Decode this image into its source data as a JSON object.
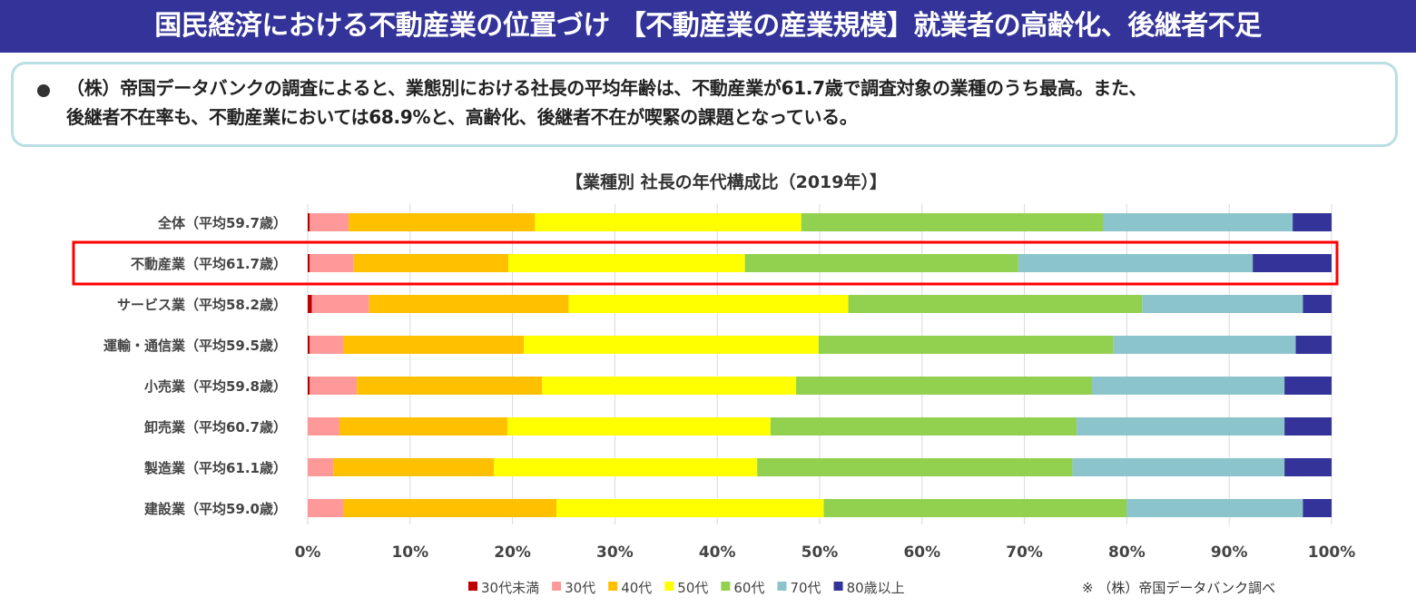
{
  "header": {
    "title": "国民経済における不動産業の位置づけ 【不動産業の産業規模】就業者の高齢化、後継者不足"
  },
  "callout": {
    "line1": "（株）帝国データバンクの調査によると、業態別における社長の平均年齢は、不動産業が61.7歳で調査対象の業種のうち最高。また、",
    "line2": "後継者不在率も、不動産業においては68.9%と、高齢化、後継者不在が喫緊の課題となっている。"
  },
  "source_note": "※ （株）帝国データバンク調べ",
  "chart_data": {
    "type": "bar",
    "orientation": "horizontal",
    "stacked": "100%",
    "title": "【業種別 社長の年代構成比（2019年）】",
    "categories": [
      "全体（平均59.7歳）",
      "不動産業（平均61.7歳）",
      "サービス業（平均58.2歳）",
      "運輸・通信業（平均59.5歳）",
      "小売業（平均59.8歳）",
      "卸売業（平均60.7歳）",
      "製造業（平均61.1歳）",
      "建設業（平均59.0歳）"
    ],
    "highlighted_category": "不動産業（平均61.7歳）",
    "highlight_color": "#ff0000",
    "xlim": [
      0,
      100
    ],
    "x_ticks": [
      "0%",
      "10%",
      "20%",
      "30%",
      "40%",
      "50%",
      "60%",
      "70%",
      "80%",
      "90%",
      "100%"
    ],
    "grid": true,
    "legend_position": "bottom",
    "series": [
      {
        "name": "30代未満",
        "color": "#c00000",
        "values": [
          0.2,
          0.2,
          0.4,
          0.2,
          0.2,
          0.0,
          0.0,
          0.0
        ]
      },
      {
        "name": "30代",
        "color": "#ff9999",
        "values": [
          3.8,
          4.3,
          5.6,
          3.3,
          4.6,
          3.1,
          2.5,
          3.5
        ]
      },
      {
        "name": "40代",
        "color": "#ffc000",
        "values": [
          18.2,
          15.1,
          19.5,
          17.6,
          18.1,
          16.4,
          15.7,
          20.8
        ]
      },
      {
        "name": "50代",
        "color": "#ffff00",
        "values": [
          26.0,
          23.1,
          27.3,
          28.8,
          24.8,
          25.7,
          25.7,
          26.1
        ]
      },
      {
        "name": "60代",
        "color": "#92d050",
        "values": [
          29.5,
          26.7,
          28.7,
          28.8,
          28.9,
          29.9,
          30.8,
          29.6
        ]
      },
      {
        "name": "70代",
        "color": "#8cc4cc",
        "values": [
          18.5,
          22.9,
          15.7,
          17.8,
          18.8,
          20.3,
          20.7,
          17.2
        ]
      },
      {
        "name": "80歳以上",
        "color": "#333399",
        "values": [
          3.8,
          7.7,
          2.8,
          3.5,
          4.6,
          4.6,
          4.6,
          2.8
        ]
      }
    ]
  }
}
